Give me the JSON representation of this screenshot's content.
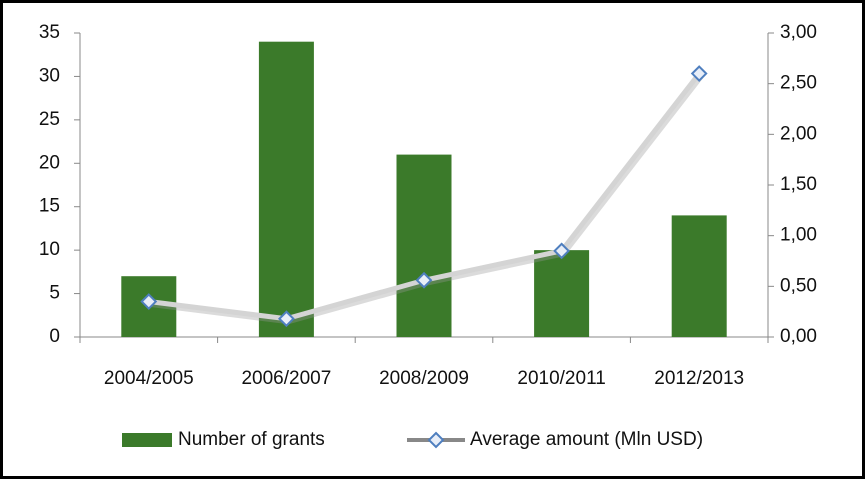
{
  "chart_data": {
    "type": "bar",
    "categories": [
      "2004/2005",
      "2006/2007",
      "2008/2009",
      "2010/2011",
      "2012/2013"
    ],
    "series": [
      {
        "name": "Number of grants",
        "type": "bar",
        "color": "#3b7a2a",
        "values": [
          7,
          34,
          21,
          10,
          14
        ]
      },
      {
        "name": "Average amount (Mln USD)",
        "type": "line",
        "axis": "y2",
        "color": "#d4d4d4",
        "marker_color": "#4f7fbf",
        "values": [
          0.35,
          0.18,
          0.56,
          0.85,
          2.6
        ]
      }
    ],
    "ylim": [
      0,
      35
    ],
    "yticks": [
      0,
      5,
      10,
      15,
      20,
      25,
      30,
      35
    ],
    "y2lim": [
      0,
      3
    ],
    "y2ticks": [
      {
        "value": 0,
        "label": "0,00"
      },
      {
        "value": 0.5,
        "label": "0,50"
      },
      {
        "value": 1,
        "label": "1,00"
      },
      {
        "value": 1.5,
        "label": "1,50"
      },
      {
        "value": 2,
        "label": "2,00"
      },
      {
        "value": 2.5,
        "label": "2,50"
      },
      {
        "value": 3,
        "label": "3,00"
      }
    ],
    "grid": false,
    "legend": "bottom"
  }
}
